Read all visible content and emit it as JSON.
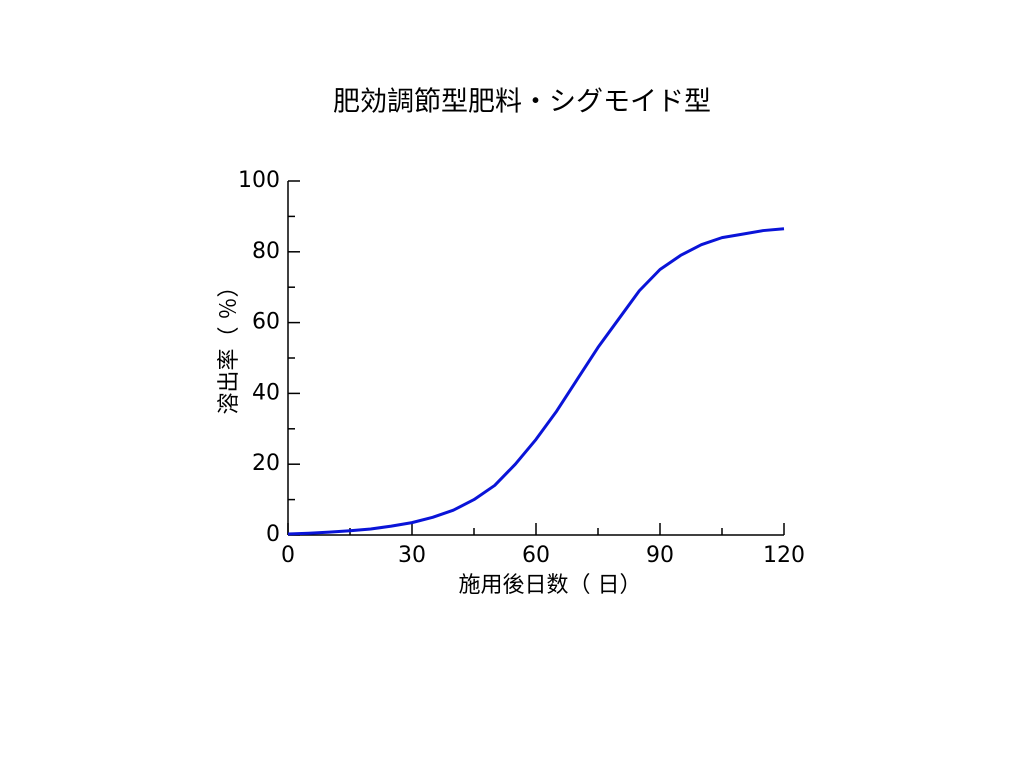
{
  "chart_data": {
    "type": "line",
    "title": "肥効調節型肥料・シグモイド型",
    "x_label": "施用後日数（ 日）",
    "y_label": "溶出率（ ％）",
    "x": [
      0,
      5,
      10,
      15,
      20,
      25,
      30,
      35,
      40,
      45,
      50,
      55,
      60,
      65,
      70,
      75,
      80,
      85,
      90,
      95,
      100,
      105,
      110,
      115,
      120
    ],
    "series": [
      {
        "name": "溶出率",
        "color": "#0a14d8",
        "values": [
          0.3,
          0.5,
          0.8,
          1.2,
          1.7,
          2.5,
          3.5,
          5,
          7,
          10,
          14,
          20,
          27,
          35,
          44,
          53,
          61,
          69,
          75,
          79,
          82,
          84,
          85,
          86,
          86.5
        ]
      }
    ],
    "xlim": [
      0,
      120
    ],
    "ylim": [
      0,
      100
    ],
    "xticks": [
      0,
      30,
      60,
      90,
      120
    ],
    "yticks": [
      0,
      20,
      40,
      60,
      80,
      100
    ],
    "xminorticks": [
      15,
      45,
      75,
      105
    ],
    "yminorticks": [
      10,
      30,
      50,
      70,
      90
    ],
    "grid": false
  }
}
